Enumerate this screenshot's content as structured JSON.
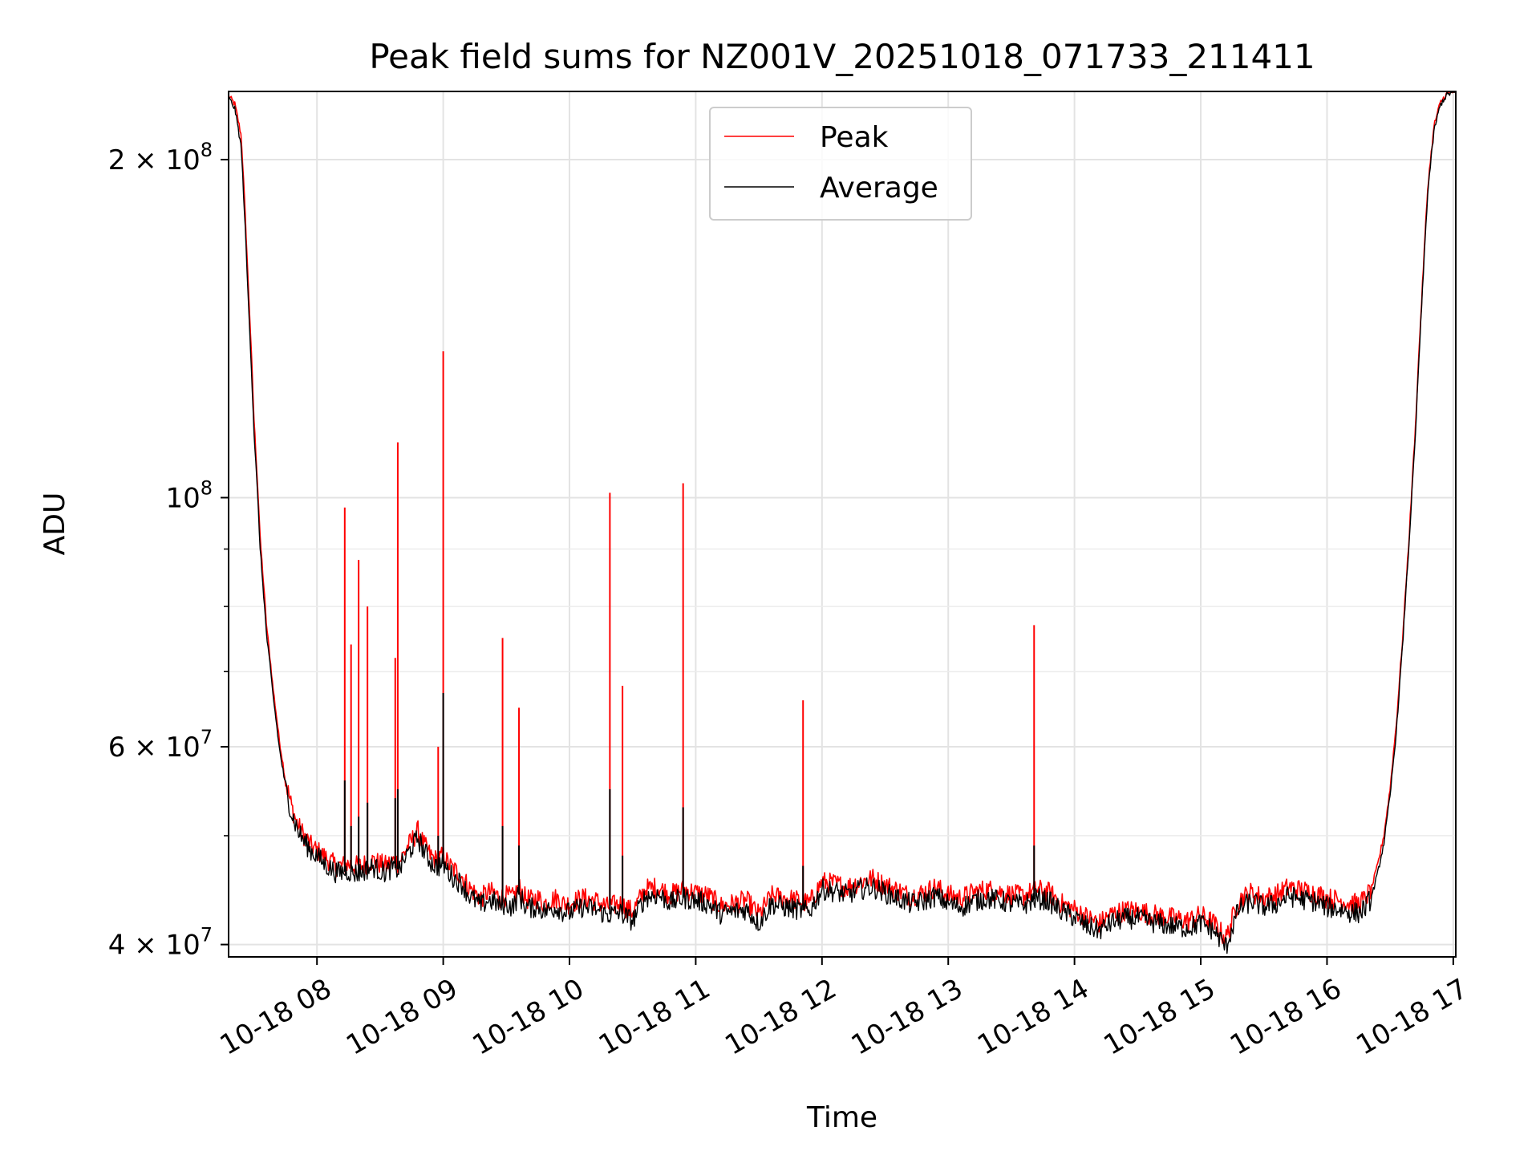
{
  "chart_data": {
    "type": "line",
    "title": "Peak field sums for NZ001V_20251018_071733_211411",
    "xlabel": "Time",
    "ylabel": "ADU",
    "yscale": "log",
    "grid": true,
    "legend_position": "upper-center",
    "xlim_hours": [
      7.3,
      17.02
    ],
    "ylim": [
      39000000,
      230000000
    ],
    "x_ticks": [
      {
        "hour": 8,
        "label": "10-18 08"
      },
      {
        "hour": 9,
        "label": "10-18 09"
      },
      {
        "hour": 10,
        "label": "10-18 10"
      },
      {
        "hour": 11,
        "label": "10-18 11"
      },
      {
        "hour": 12,
        "label": "10-18 12"
      },
      {
        "hour": 13,
        "label": "10-18 13"
      },
      {
        "hour": 14,
        "label": "10-18 14"
      },
      {
        "hour": 15,
        "label": "10-18 15"
      },
      {
        "hour": 16,
        "label": "10-18 16"
      },
      {
        "hour": 17,
        "label": "10-18 17"
      }
    ],
    "y_major_ticks": [
      {
        "value": 40000000,
        "mantissa": "4",
        "exponent": "7"
      },
      {
        "value": 60000000,
        "mantissa": "6",
        "exponent": "7"
      },
      {
        "value": 100000000,
        "mantissa": "",
        "exponent": "8"
      },
      {
        "value": 200000000,
        "mantissa": "2",
        "exponent": "8"
      }
    ],
    "y_minor_ticks": [
      50000000,
      70000000,
      80000000,
      90000000
    ],
    "series": [
      {
        "name": "Peak",
        "color": "#ff0000",
        "x": [
          7.3,
          7.35,
          7.4,
          7.45,
          7.5,
          7.55,
          7.6,
          7.65,
          7.7,
          7.75,
          7.8,
          7.85,
          7.9,
          7.95,
          8.0,
          8.05,
          8.1,
          8.15,
          8.2,
          8.25,
          8.3,
          8.35,
          8.4,
          8.45,
          8.5,
          8.55,
          8.6,
          8.65,
          8.7,
          8.75,
          8.8,
          8.85,
          8.9,
          8.95,
          9.0,
          9.05,
          9.1,
          9.15,
          9.2,
          9.25,
          9.3,
          9.35,
          9.4,
          9.45,
          9.5,
          9.55,
          9.6,
          9.65,
          9.7,
          9.75,
          9.8,
          9.85,
          9.9,
          9.95,
          10.0,
          10.1,
          10.2,
          10.3,
          10.4,
          10.5,
          10.6,
          10.7,
          10.8,
          10.9,
          11.0,
          11.1,
          11.2,
          11.3,
          11.4,
          11.5,
          11.6,
          11.7,
          11.8,
          11.9,
          12.0,
          12.1,
          12.2,
          12.3,
          12.4,
          12.5,
          12.6,
          12.7,
          12.8,
          12.9,
          13.0,
          13.1,
          13.2,
          13.3,
          13.4,
          13.5,
          13.6,
          13.7,
          13.8,
          13.9,
          14.0,
          14.1,
          14.2,
          14.3,
          14.4,
          14.5,
          14.6,
          14.7,
          14.8,
          14.9,
          15.0,
          15.1,
          15.2,
          15.3,
          15.4,
          15.5,
          15.6,
          15.7,
          15.8,
          15.9,
          16.0,
          16.1,
          16.2,
          16.25,
          16.3,
          16.35,
          16.4,
          16.45,
          16.5,
          16.55,
          16.6,
          16.65,
          16.7,
          16.75,
          16.8,
          16.85,
          16.9,
          16.95,
          17.0,
          17.02
        ],
        "y": [
          228000000,
          224000000,
          210000000,
          160000000,
          118000000,
          92000000,
          77000000,
          68000000,
          61000000,
          56000000,
          53000000,
          51000000,
          50000000,
          49000000,
          48500000,
          48000000,
          47500000,
          47000000,
          47000000,
          47200000,
          47000000,
          47000000,
          47300000,
          47500000,
          47200000,
          47000000,
          47500000,
          47300000,
          48500000,
          49500000,
          50500000,
          49000000,
          48000000,
          47500000,
          48000000,
          47000000,
          46500000,
          46000000,
          45000000,
          44500000,
          44000000,
          44500000,
          44500000,
          44000000,
          44200000,
          44000000,
          45000000,
          44000000,
          43800000,
          44000000,
          43500000,
          43800000,
          44000000,
          43500000,
          43500000,
          44000000,
          43800000,
          43200000,
          43500000,
          42800000,
          44800000,
          45000000,
          44300000,
          44800000,
          44500000,
          44200000,
          43300000,
          43500000,
          43800000,
          42500000,
          44200000,
          44000000,
          43800000,
          43500000,
          45500000,
          45300000,
          45000000,
          45500000,
          45800000,
          45200000,
          44700000,
          44200000,
          44500000,
          45000000,
          44300000,
          44000000,
          44500000,
          44800000,
          44600000,
          44300000,
          44200000,
          44800000,
          44500000,
          43500000,
          43000000,
          42300000,
          41800000,
          42600000,
          42900000,
          42900000,
          42600000,
          42400000,
          42200000,
          42000000,
          42500000,
          41800000,
          40500000,
          43800000,
          44500000,
          44000000,
          44300000,
          45000000,
          44700000,
          44500000,
          44000000,
          43800000,
          43500000,
          43500000,
          43900000,
          44800000,
          47000000,
          50000000,
          55000000,
          63000000,
          75000000,
          92000000,
          115000000,
          150000000,
          190000000,
          215000000,
          225000000,
          229000000,
          230000000,
          230000000
        ]
      },
      {
        "name": "Average",
        "color": "#000000",
        "x": [
          7.3,
          7.35,
          7.4,
          7.45,
          7.5,
          7.55,
          7.6,
          7.65,
          7.7,
          7.75,
          7.8,
          7.85,
          7.9,
          7.95,
          8.0,
          8.05,
          8.1,
          8.15,
          8.2,
          8.25,
          8.3,
          8.35,
          8.4,
          8.45,
          8.5,
          8.55,
          8.6,
          8.65,
          8.7,
          8.75,
          8.8,
          8.85,
          8.9,
          8.95,
          9.0,
          9.05,
          9.1,
          9.15,
          9.2,
          9.25,
          9.3,
          9.35,
          9.4,
          9.45,
          9.5,
          9.55,
          9.6,
          9.65,
          9.7,
          9.75,
          9.8,
          9.85,
          9.9,
          9.95,
          10.0,
          10.1,
          10.2,
          10.3,
          10.4,
          10.5,
          10.6,
          10.7,
          10.8,
          10.9,
          11.0,
          11.1,
          11.2,
          11.3,
          11.4,
          11.5,
          11.6,
          11.7,
          11.8,
          11.9,
          12.0,
          12.1,
          12.2,
          12.3,
          12.4,
          12.5,
          12.6,
          12.7,
          12.8,
          12.9,
          13.0,
          13.1,
          13.2,
          13.3,
          13.4,
          13.5,
          13.6,
          13.7,
          13.8,
          13.9,
          14.0,
          14.1,
          14.2,
          14.3,
          14.4,
          14.5,
          14.6,
          14.7,
          14.8,
          14.9,
          15.0,
          15.1,
          15.2,
          15.3,
          15.4,
          15.5,
          15.6,
          15.7,
          15.8,
          15.9,
          16.0,
          16.1,
          16.2,
          16.25,
          16.3,
          16.35,
          16.4,
          16.45,
          16.5,
          16.55,
          16.6,
          16.65,
          16.7,
          16.75,
          16.8,
          16.85,
          16.9,
          16.95,
          17.0,
          17.02
        ],
        "y": [
          227000000,
          222000000,
          205000000,
          155000000,
          115000000,
          90000000,
          75500000,
          67000000,
          60000000,
          55300000,
          52300000,
          50500000,
          49400000,
          48500000,
          48000000,
          47300000,
          46800000,
          46400000,
          46400000,
          46500000,
          46300000,
          46400000,
          46700000,
          46900000,
          46500000,
          46400000,
          46900000,
          46600000,
          47800000,
          48800000,
          49800000,
          48400000,
          47400000,
          46900000,
          47200000,
          46300000,
          45700000,
          45300000,
          44300000,
          43800000,
          43300000,
          43800000,
          43700000,
          43300000,
          43500000,
          43200000,
          44300000,
          43300000,
          43100000,
          43300000,
          42800000,
          43000000,
          43200000,
          42800000,
          42700000,
          43200000,
          43000000,
          42500000,
          42700000,
          42000000,
          44100000,
          44300000,
          43600000,
          44000000,
          43800000,
          43500000,
          42600000,
          42800000,
          43000000,
          41800000,
          43500000,
          43200000,
          43000000,
          42800000,
          44800000,
          44600000,
          44300000,
          44800000,
          45000000,
          44500000,
          44000000,
          43500000,
          43700000,
          44200000,
          43500000,
          43200000,
          43700000,
          44000000,
          43800000,
          43500000,
          43400000,
          44000000,
          43700000,
          42800000,
          42300000,
          41500000,
          41200000,
          41900000,
          42200000,
          42200000,
          41900000,
          41700000,
          41500000,
          41400000,
          41800000,
          41200000,
          39800000,
          43000000,
          43700000,
          43200000,
          43500000,
          44200000,
          43900000,
          43700000,
          43200000,
          43000000,
          42700000,
          42700000,
          43100000,
          44000000,
          46200000,
          49200000,
          54200000,
          62000000,
          74000000,
          91000000,
          113000000,
          148000000,
          188000000,
          213000000,
          224000000,
          228500000,
          229500000,
          230000000
        ]
      }
    ],
    "spikes": [
      {
        "x": 8.22,
        "peak": 98000000,
        "avg": 56000000
      },
      {
        "x": 8.27,
        "peak": 74000000,
        "avg": 51000000
      },
      {
        "x": 8.33,
        "peak": 88000000,
        "avg": 52000000
      },
      {
        "x": 8.4,
        "peak": 80000000,
        "avg": 53500000
      },
      {
        "x": 8.62,
        "peak": 72000000,
        "avg": 54000000
      },
      {
        "x": 8.64,
        "peak": 112000000,
        "avg": 55000000
      },
      {
        "x": 8.96,
        "peak": 60000000,
        "avg": 50000000
      },
      {
        "x": 9.0,
        "peak": 135000000,
        "avg": 67000000
      },
      {
        "x": 9.47,
        "peak": 75000000,
        "avg": 51000000
      },
      {
        "x": 9.6,
        "peak": 65000000,
        "avg": 49000000
      },
      {
        "x": 10.32,
        "peak": 101000000,
        "avg": 55000000
      },
      {
        "x": 10.42,
        "peak": 68000000,
        "avg": 48000000
      },
      {
        "x": 10.9,
        "peak": 103000000,
        "avg": 53000000
      },
      {
        "x": 11.85,
        "peak": 66000000,
        "avg": 47000000
      },
      {
        "x": 13.68,
        "peak": 77000000,
        "avg": 49000000
      }
    ]
  }
}
